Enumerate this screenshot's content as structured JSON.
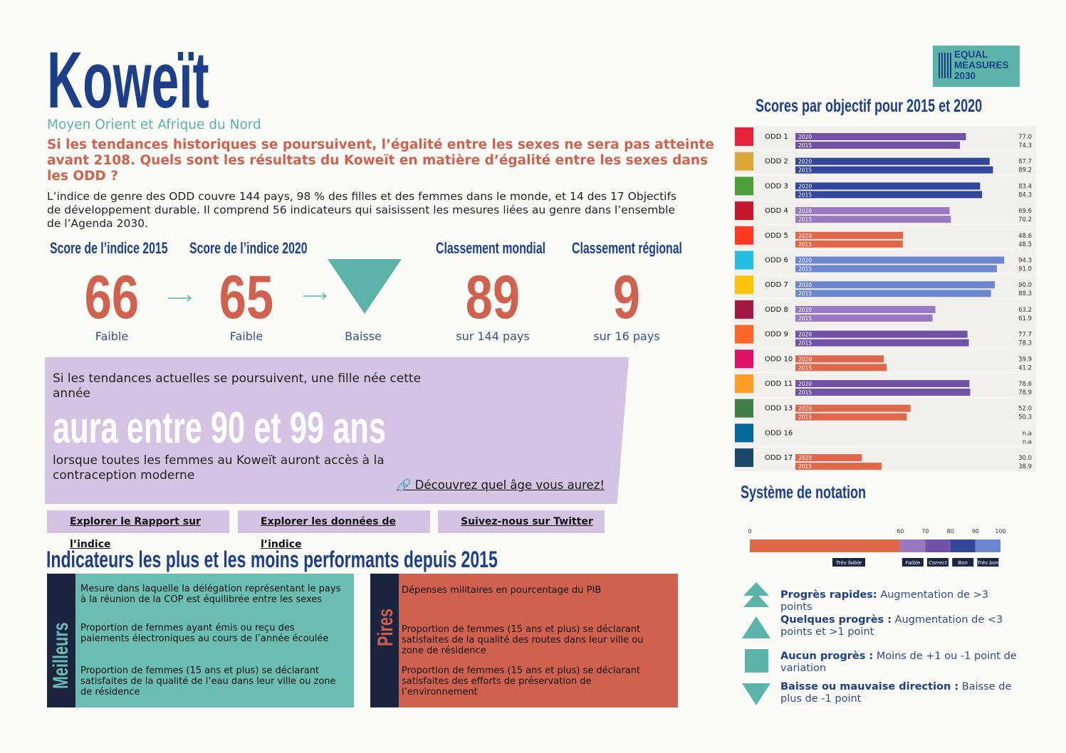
{
  "header": {
    "title": "Koweït",
    "region": "Moyen Orient et Afrique du Nord",
    "question": "Si les tendances historiques se poursuivent, l’égalité entre les sexes ne sera pas atteinte avant 2108. Quels sont les résultats du Koweït en matière d’égalité entre les sexes dans les ODD ?",
    "intro": "L’indice de genre des ODD couvre 144 pays, 98 % des filles et des femmes dans le monde, et 14 des 17 Objectifs de développement durable. Il comprend 56 indicateurs qui saisissent les mesures liées au genre dans l’ensemble de l’Agenda 2030."
  },
  "logo": [
    "EQUAL",
    "MEASURES",
    "2030"
  ],
  "stats": [
    {
      "label": "Score de l’indice 2015",
      "value": 66,
      "note": "Faible"
    },
    {
      "label": "Score de l’indice 2020",
      "value": 65,
      "note": "Faible"
    },
    {
      "label": "Classement mondial",
      "value": 89,
      "note": "sur 144 pays"
    },
    {
      "label": "Classement régional",
      "value": 9,
      "note": "sur 16 pays"
    }
  ],
  "trend": "Baisse",
  "age_box": {
    "lead": "Si les tendances actuelles se poursuivent, une fille née cette année",
    "headline": "aura entre 90 et 99 ans",
    "tail": "lorsque toutes les femmes au Koweït auront accès à la contraception moderne",
    "link": "Découvrez quel âge vous aurez!"
  },
  "links": [
    "Explorer le Rapport sur l’indice",
    "Explorer les données de l’indice",
    "Suivez-nous sur Twitter"
  ],
  "indicators": {
    "title": "Indicateurs les plus et les moins performants depuis 2015",
    "best": {
      "label": "Meilleurs",
      "items": [
        "Mesure dans laquelle la délégation représentant le pays à la réunion de la COP est équilibrée entre les sexes",
        "Proportion de femmes ayant émis ou reçu des paiements électroniques au cours de l’année écoulée",
        "Proportion de femmes (15 ans et plus) se déclarant satisfaites de la qualité de l’eau dans leur ville ou zone de résidence"
      ]
    },
    "worst": {
      "label": "Pires",
      "items": [
        "Dépenses militaires en pourcentage du PIB",
        "Proportion de femmes (15 ans et plus) se déclarant satisfaites de la qualité des routes dans leur ville ou zone de résidence",
        "Proportion de femmes (15 ans et plus) se déclarant satisfaites des efforts de préservation de l’environnement"
      ]
    }
  },
  "chart_data": {
    "type": "bar",
    "orientation": "horizontal",
    "title": "Scores par objectif pour 2015 et 2020",
    "categories": [
      "ODD 1",
      "ODD 2",
      "ODD 3",
      "ODD 4",
      "ODD 5",
      "ODD 6",
      "ODD 7",
      "ODD 8",
      "ODD 9",
      "ODD 10",
      "ODD 11",
      "ODD 13",
      "ODD 16",
      "ODD 17"
    ],
    "colors": [
      "#7152a6",
      "#33479a",
      "#33479a",
      "#9878c2",
      "#e0674a",
      "#6d86d0",
      "#6d86d0",
      "#9878c2",
      "#7152a6",
      "#e0674a",
      "#7152a6",
      "#e0674a",
      null,
      "#e0674a"
    ],
    "xlim": [
      0,
      100
    ],
    "series": [
      {
        "name": "2020",
        "values": [
          77.0,
          87.7,
          83.4,
          69.6,
          48.6,
          94.3,
          90.0,
          63.2,
          77.7,
          39.9,
          78.6,
          52.0,
          null,
          30.0
        ],
        "value_labels": [
          "77.0",
          "87.7",
          "83.4",
          "69.6",
          "48.6",
          "94.3",
          "90.0",
          "63.2",
          "77.7",
          "39.9",
          "78.6",
          "52.0",
          "n.a",
          "30.0"
        ]
      },
      {
        "name": "2015",
        "values": [
          74.3,
          89.2,
          84.3,
          70.2,
          48.5,
          91.0,
          88.3,
          61.9,
          78.3,
          41.2,
          78.9,
          50.3,
          null,
          38.9
        ],
        "value_labels": [
          "74.3",
          "89.2",
          "84.3",
          "70.2",
          "48.5",
          "91.0",
          "88.3",
          "61.9",
          "78.3",
          "41.2",
          "78.9",
          "50.3",
          "n.a",
          "38.9"
        ]
      }
    ]
  },
  "rating": {
    "title": "Système de notation",
    "ticks": [
      0,
      60,
      70,
      80,
      90,
      100
    ],
    "bands": [
      {
        "label": "Très faible",
        "color": "#e0674a"
      },
      {
        "label": "Faible",
        "color": "#9878c2"
      },
      {
        "label": "Correct",
        "color": "#7152a6"
      },
      {
        "label": "Bon",
        "color": "#33479a"
      },
      {
        "label": "Très bon",
        "color": "#6d86d0"
      }
    ],
    "legend": [
      {
        "title": "Progrès rapides:",
        "text": "Augmentation de >3 points"
      },
      {
        "title": "Quelques progrès :",
        "text": "Augmentation de <3 points et >1 point"
      },
      {
        "title": "Aucun progrès :",
        "text": "Moins de +1 ou -1 point de variation"
      },
      {
        "title": "Baisse ou mauvaise direction :",
        "text": "Baisse de plus de -1 point"
      }
    ]
  }
}
